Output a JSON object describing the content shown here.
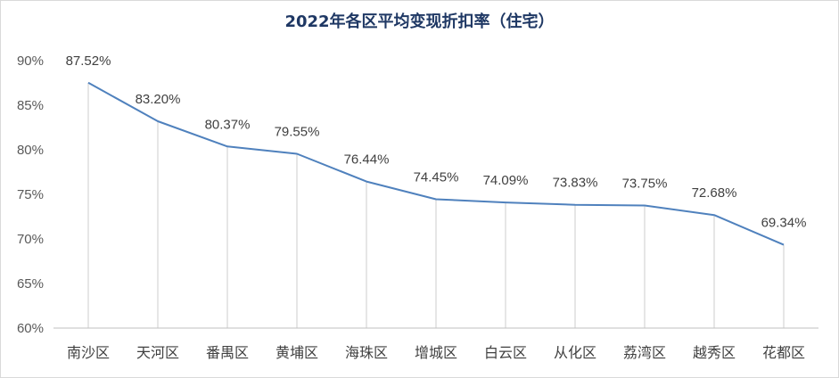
{
  "chart_data": {
    "type": "line",
    "title": "2022年各区平均变现折扣率（住宅）",
    "categories": [
      "南沙区",
      "天河区",
      "番禺区",
      "黄埔区",
      "海珠区",
      "增城区",
      "白云区",
      "从化区",
      "荔湾区",
      "越秀区",
      "花都区"
    ],
    "values": [
      87.52,
      83.2,
      80.37,
      79.55,
      76.44,
      74.45,
      74.09,
      73.83,
      73.75,
      72.68,
      69.34
    ],
    "data_labels": [
      "87.52%",
      "83.20%",
      "80.37%",
      "79.55%",
      "76.44%",
      "74.45%",
      "74.09%",
      "73.83%",
      "73.75%",
      "72.68%",
      "69.34%"
    ],
    "ylim": [
      60,
      90
    ],
    "yticks": [
      60,
      65,
      70,
      75,
      80,
      85,
      90
    ],
    "ytick_labels": [
      "60%",
      "65%",
      "70%",
      "75%",
      "80%",
      "85%",
      "90%"
    ],
    "line_color": "#4f81bd",
    "drop_line_color": "#d9d9d9",
    "axis_color": "#bfbfbf",
    "grid": false,
    "legend": "none"
  }
}
